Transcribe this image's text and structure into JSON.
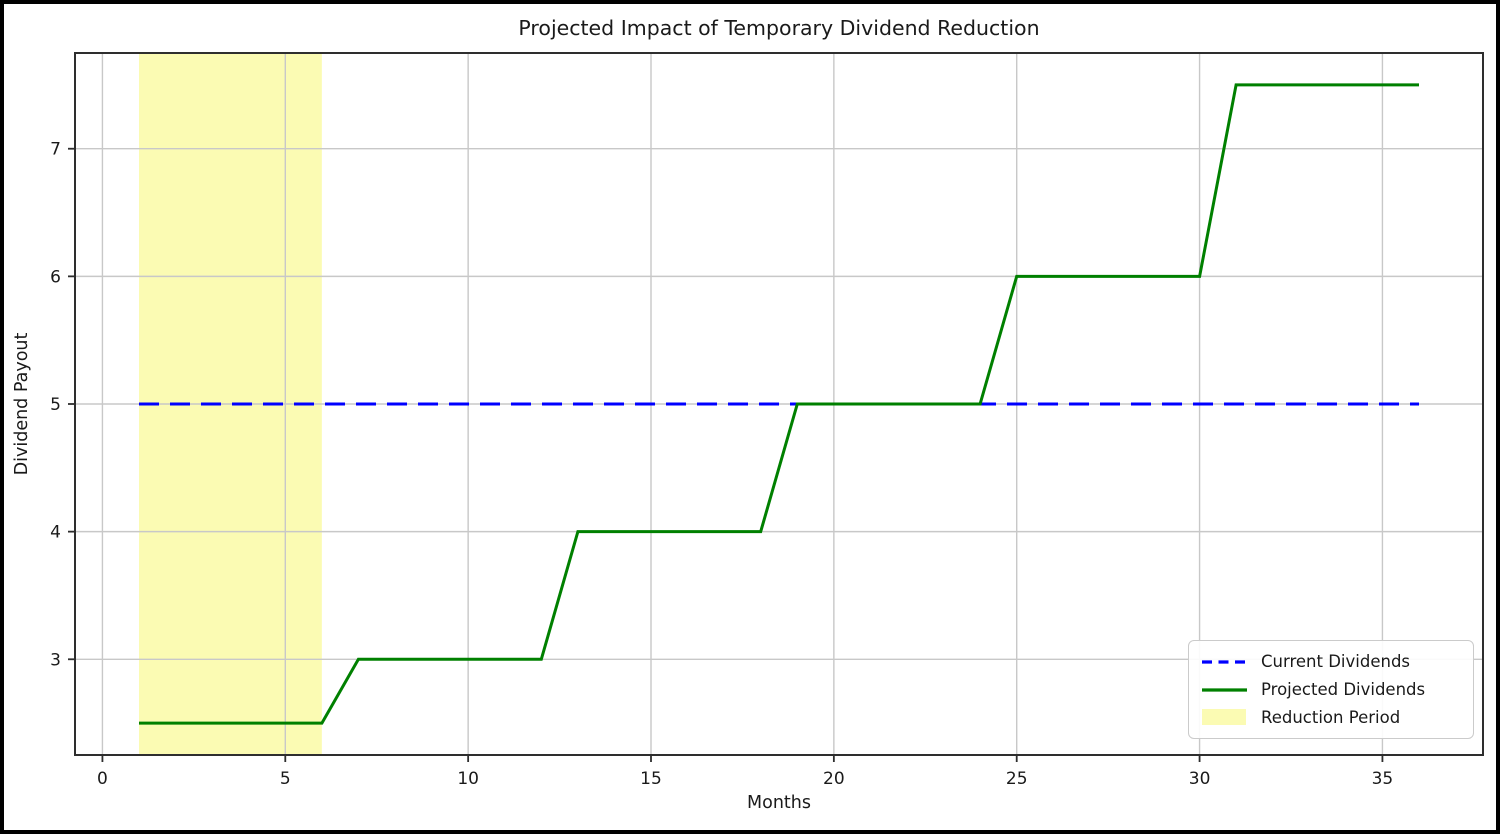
{
  "figure": {
    "background": "#ffffff",
    "border_color": "#000000",
    "text_color": "#1a1a1a"
  },
  "chart_data": {
    "type": "line",
    "title": "Projected Impact of Temporary Dividend Reduction",
    "xlabel": "Months",
    "ylabel": "Dividend Payout",
    "xlim": [
      -0.75,
      37.75
    ],
    "ylim": [
      2.25,
      7.75
    ],
    "x_ticks": [
      "0",
      "5",
      "10",
      "15",
      "20",
      "25",
      "30",
      "35"
    ],
    "x_tick_values": [
      0,
      5,
      10,
      15,
      20,
      25,
      30,
      35
    ],
    "y_ticks": [
      "3",
      "4",
      "5",
      "6",
      "7"
    ],
    "y_tick_values": [
      3,
      4,
      5,
      6,
      7
    ],
    "grid": true,
    "grid_color": "#c8c8c8",
    "axis_color": "#2e2e2e",
    "x": [
      1,
      2,
      3,
      4,
      5,
      6,
      7,
      8,
      9,
      10,
      11,
      12,
      13,
      14,
      15,
      16,
      17,
      18,
      19,
      20,
      21,
      22,
      23,
      24,
      25,
      26,
      27,
      28,
      29,
      30,
      31,
      32,
      33,
      34,
      35,
      36
    ],
    "series": [
      {
        "name": "Current Dividends",
        "color": "#0000ff",
        "linestyle": "dashed",
        "values": [
          5,
          5,
          5,
          5,
          5,
          5,
          5,
          5,
          5,
          5,
          5,
          5,
          5,
          5,
          5,
          5,
          5,
          5,
          5,
          5,
          5,
          5,
          5,
          5,
          5,
          5,
          5,
          5,
          5,
          5,
          5,
          5,
          5,
          5,
          5,
          5
        ]
      },
      {
        "name": "Projected Dividends",
        "color": "#008000",
        "linestyle": "solid",
        "values": [
          2.5,
          2.5,
          2.5,
          2.5,
          2.5,
          2.5,
          3,
          3,
          3,
          3,
          3,
          3,
          4,
          4,
          4,
          4,
          4,
          4,
          5,
          5,
          5,
          5,
          5,
          5,
          6,
          6,
          6,
          6,
          6,
          6,
          7.5,
          7.5,
          7.5,
          7.5,
          7.5,
          7.5
        ]
      }
    ],
    "annotations": [
      {
        "name": "Reduction Period",
        "type": "vspan",
        "x0": 1,
        "x1": 6,
        "base_color": "#ffff00",
        "alpha": 0.3,
        "fill": "#fbfbb3"
      }
    ],
    "legend": {
      "position": "lower right",
      "entries": [
        {
          "label": "Current Dividends",
          "marker": "dashed-line",
          "color": "#0000ff"
        },
        {
          "label": "Projected Dividends",
          "marker": "solid-line",
          "color": "#008000"
        },
        {
          "label": "Reduction Period",
          "marker": "patch",
          "color": "#fbfbb3"
        }
      ]
    }
  }
}
